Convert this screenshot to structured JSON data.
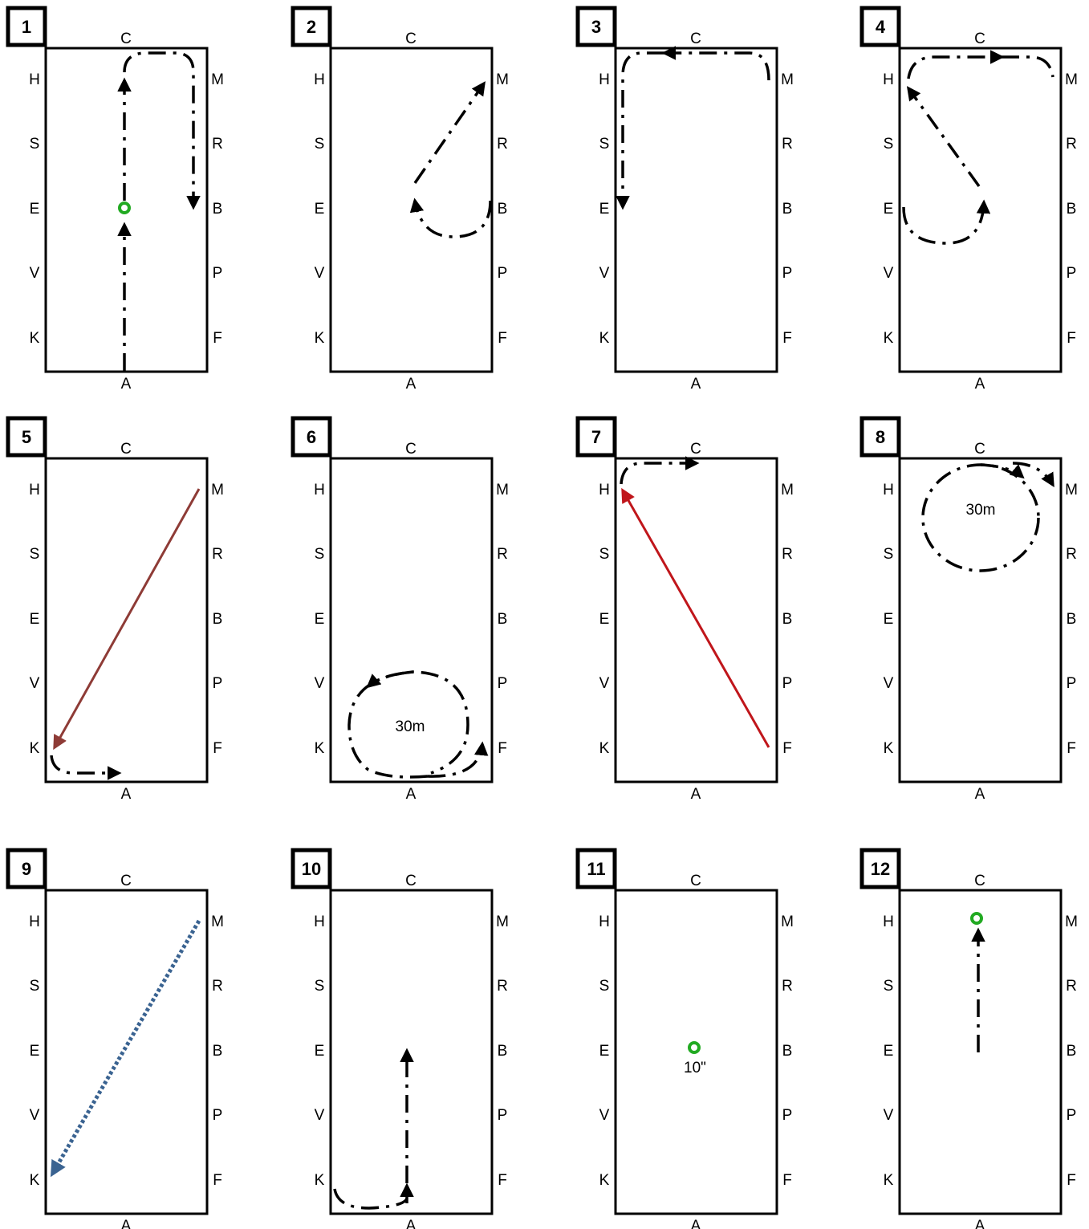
{
  "panels": [
    {
      "number": "1",
      "top": "C",
      "bottom": "A",
      "left": [
        "H",
        "S",
        "E",
        "V",
        "K"
      ],
      "right": [
        "M",
        "R",
        "B",
        "P",
        "F"
      ]
    },
    {
      "number": "2",
      "top": "C",
      "bottom": "A",
      "left": [
        "H",
        "S",
        "E",
        "V",
        "K"
      ],
      "right": [
        "M",
        "R",
        "B",
        "P",
        "F"
      ]
    },
    {
      "number": "3",
      "top": "C",
      "bottom": "A",
      "left": [
        "H",
        "S",
        "E",
        "V",
        "K"
      ],
      "right": [
        "M",
        "R",
        "B",
        "P",
        "F"
      ]
    },
    {
      "number": "4",
      "top": "C",
      "bottom": "A",
      "left": [
        "H",
        "S",
        "E",
        "V",
        "K"
      ],
      "right": [
        "M",
        "R",
        "B",
        "P",
        "F"
      ]
    },
    {
      "number": "5",
      "top": "C",
      "bottom": "A",
      "left": [
        "H",
        "S",
        "E",
        "V",
        "K"
      ],
      "right": [
        "M",
        "R",
        "B",
        "P",
        "F"
      ]
    },
    {
      "number": "6",
      "top": "C",
      "bottom": "A",
      "left": [
        "H",
        "S",
        "E",
        "V",
        "K"
      ],
      "right": [
        "M",
        "R",
        "B",
        "P",
        "F"
      ],
      "note": "30m"
    },
    {
      "number": "7",
      "top": "C",
      "bottom": "A",
      "left": [
        "H",
        "S",
        "E",
        "V",
        "K"
      ],
      "right": [
        "M",
        "R",
        "B",
        "P",
        "F"
      ]
    },
    {
      "number": "8",
      "top": "C",
      "bottom": "A",
      "left": [
        "H",
        "S",
        "E",
        "V",
        "K"
      ],
      "right": [
        "M",
        "R",
        "B",
        "P",
        "F"
      ],
      "note": "30m"
    },
    {
      "number": "9",
      "top": "C",
      "bottom": "A",
      "left": [
        "H",
        "S",
        "E",
        "V",
        "K"
      ],
      "right": [
        "M",
        "R",
        "B",
        "P",
        "F"
      ]
    },
    {
      "number": "10",
      "top": "C",
      "bottom": "A",
      "left": [
        "H",
        "S",
        "E",
        "V",
        "K"
      ],
      "right": [
        "M",
        "R",
        "B",
        "P",
        "F"
      ]
    },
    {
      "number": "11",
      "top": "C",
      "bottom": "A",
      "left": [
        "H",
        "S",
        "E",
        "V",
        "K"
      ],
      "right": [
        "M",
        "R",
        "B",
        "P",
        "F"
      ],
      "note": "10\""
    },
    {
      "number": "12",
      "top": "C",
      "bottom": "A",
      "left": [
        "H",
        "S",
        "E",
        "V",
        "K"
      ],
      "right": [
        "M",
        "R",
        "B",
        "P",
        "F"
      ]
    }
  ],
  "colors": {
    "path": "#000000",
    "halt_marker": "#22aa22",
    "brown_line": "#8e3b36",
    "red_line": "#c0161b",
    "blue_dotted": "#3a6391"
  }
}
